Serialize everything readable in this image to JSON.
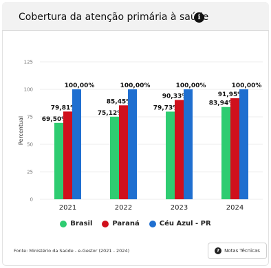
{
  "panel": {
    "title": "Cobertura da atenção primária à saúde",
    "info_icon": "i",
    "source": "Fonte: Ministério da Saúde - e-Gestor (2021 - 2024)",
    "notes_button": "Notas Técnicas",
    "notes_icon": "?"
  },
  "chart_data": {
    "type": "bar",
    "title": "",
    "xlabel": "",
    "ylabel": "Percentual",
    "ylim": [
      0,
      125
    ],
    "yticks": [
      0,
      25,
      50,
      75,
      100,
      125
    ],
    "grid": true,
    "legend_position": "bottom",
    "categories": [
      "2021",
      "2022",
      "2023",
      "2024"
    ],
    "series": [
      {
        "name": "Brasil",
        "color": "#2ecc71",
        "values": [
          69.5,
          75.12,
          79.73,
          83.94
        ],
        "labels": [
          "69,50%",
          "75,12%",
          "79,73%",
          "83,94%"
        ]
      },
      {
        "name": "Paraná",
        "color": "#d0101c",
        "values": [
          79.81,
          85.45,
          90.33,
          91.95
        ],
        "labels": [
          "79,81%",
          "85,45%",
          "90,33%",
          "91,95%"
        ]
      },
      {
        "name": "Céu Azul - PR",
        "color": "#1f6fd0",
        "values": [
          100,
          100,
          100,
          100
        ],
        "labels": [
          "100,00%",
          "100,00%",
          "100,00%",
          "100,00%"
        ]
      }
    ]
  }
}
